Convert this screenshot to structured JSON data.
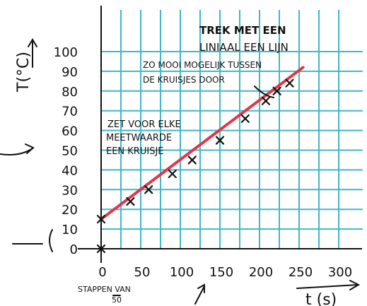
{
  "chart_data": {
    "type": "scatter",
    "x": [
      0,
      37,
      60,
      90,
      115,
      150,
      182,
      208,
      222,
      238
    ],
    "y": [
      15,
      24,
      30,
      38,
      45,
      55,
      66,
      75,
      80,
      84
    ],
    "fit_line": {
      "x": [
        0,
        255
      ],
      "y": [
        15,
        92
      ]
    },
    "x_ticks": [
      "0",
      "50",
      "100",
      "150",
      "200",
      "250",
      "300"
    ],
    "y_ticks": [
      "0",
      "10",
      "20",
      "30",
      "40",
      "50",
      "60",
      "70",
      "80",
      "90",
      "100"
    ],
    "xlabel": "t (s)",
    "ylabel": "T(°C)",
    "xlim": [
      0,
      300
    ],
    "ylim": [
      0,
      100
    ],
    "grid": true,
    "annotations": {
      "x_step": "STAPPEN VAN 50",
      "marks": "ZET VOOR ELKE MEETWAARDE EEN KRUISJE",
      "line_title": "TREK MET EEN LINIAAL EEN LIJN",
      "line_sub": "ZO MOOI MOGELIJK TUSSEN DE KRUISJES DOOR"
    }
  },
  "colors": {
    "grid": "#3fb8c4",
    "fit": "#e0364a",
    "ink": "#111111"
  }
}
